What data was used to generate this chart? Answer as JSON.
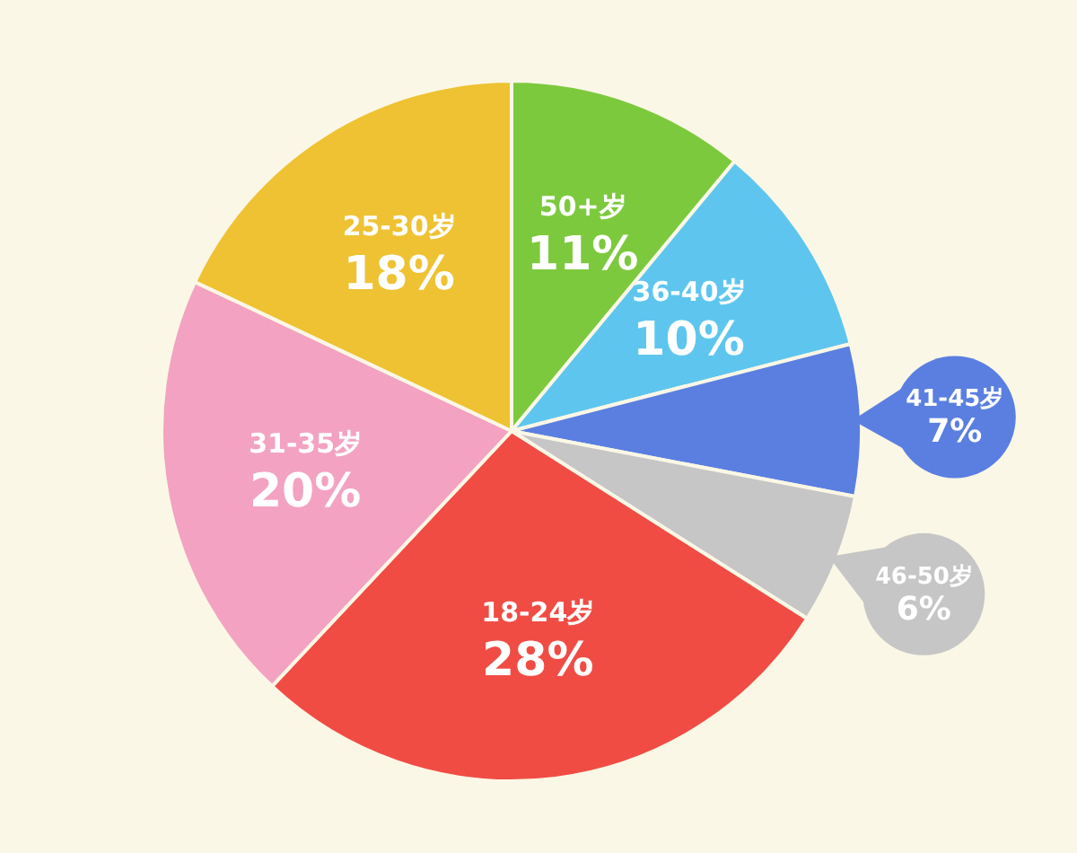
{
  "chart_data": {
    "type": "pie",
    "categories": [
      "50+岁",
      "36-40岁",
      "41-45岁",
      "46-50岁",
      "18-24岁",
      "31-35岁",
      "25-30岁"
    ],
    "values": [
      11,
      10,
      7,
      6,
      28,
      20,
      18
    ],
    "value_labels": [
      "11%",
      "10%",
      "7%",
      "6%",
      "28%",
      "20%",
      "18%"
    ],
    "colors": [
      "#7dc93e",
      "#5ec6ee",
      "#5a7fe0",
      "#c6c6c6",
      "#f04c44",
      "#f3a2c2",
      "#eec232"
    ]
  }
}
